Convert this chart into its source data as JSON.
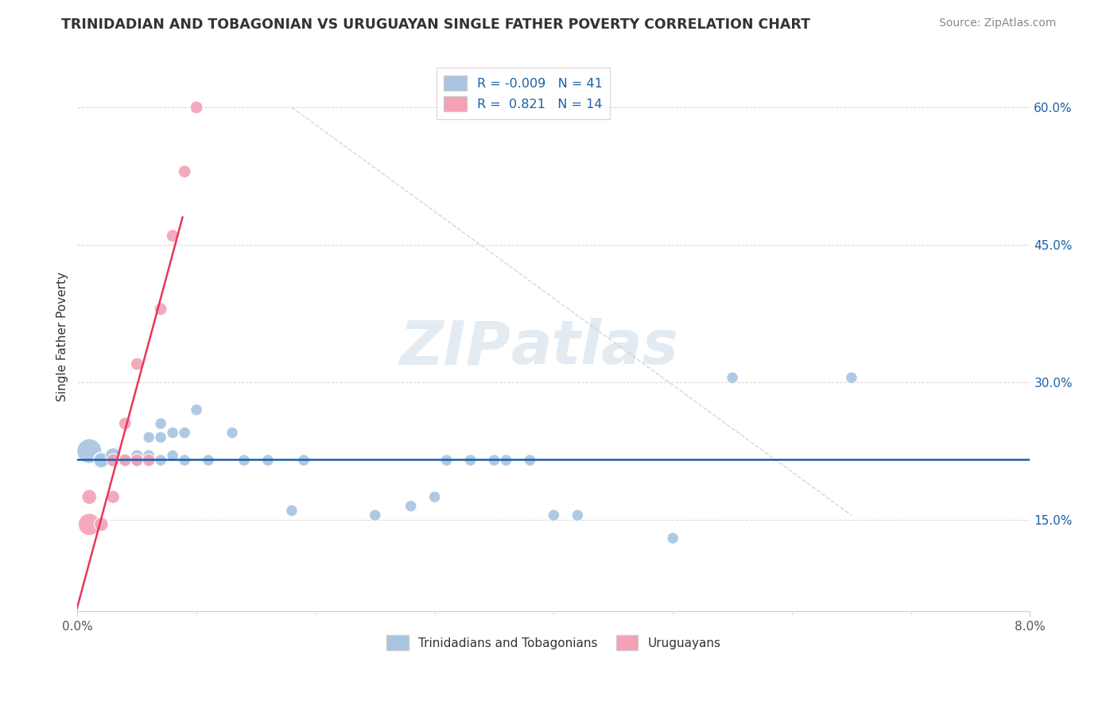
{
  "title": "TRINIDADIAN AND TOBAGONIAN VS URUGUAYAN SINGLE FATHER POVERTY CORRELATION CHART",
  "source": "Source: ZipAtlas.com",
  "ylabel": "Single Father Poverty",
  "r_blue": -0.009,
  "n_blue": 41,
  "r_pink": 0.821,
  "n_pink": 14,
  "yticks": [
    0.15,
    0.3,
    0.45,
    0.6
  ],
  "ytick_labels": [
    "15.0%",
    "30.0%",
    "45.0%",
    "60.0%"
  ],
  "xlim": [
    0.0,
    0.08
  ],
  "ylim": [
    0.05,
    0.65
  ],
  "watermark_zip": "ZIP",
  "watermark_atlas": "atlas",
  "legend_labels": [
    "Trinidadians and Tobagonians",
    "Uruguayans"
  ],
  "blue_color": "#a8c4e0",
  "pink_color": "#f4a0b5",
  "blue_line_color": "#1a5fa8",
  "pink_line_color": "#e8365a",
  "blue_scatter": [
    [
      0.001,
      0.225
    ],
    [
      0.002,
      0.215
    ],
    [
      0.002,
      0.215
    ],
    [
      0.003,
      0.22
    ],
    [
      0.003,
      0.215
    ],
    [
      0.004,
      0.215
    ],
    [
      0.004,
      0.215
    ],
    [
      0.004,
      0.215
    ],
    [
      0.005,
      0.215
    ],
    [
      0.005,
      0.22
    ],
    [
      0.005,
      0.215
    ],
    [
      0.006,
      0.22
    ],
    [
      0.006,
      0.215
    ],
    [
      0.006,
      0.24
    ],
    [
      0.007,
      0.215
    ],
    [
      0.007,
      0.24
    ],
    [
      0.007,
      0.255
    ],
    [
      0.008,
      0.22
    ],
    [
      0.008,
      0.245
    ],
    [
      0.009,
      0.215
    ],
    [
      0.009,
      0.245
    ],
    [
      0.01,
      0.27
    ],
    [
      0.011,
      0.215
    ],
    [
      0.013,
      0.245
    ],
    [
      0.014,
      0.215
    ],
    [
      0.016,
      0.215
    ],
    [
      0.018,
      0.16
    ],
    [
      0.019,
      0.215
    ],
    [
      0.025,
      0.155
    ],
    [
      0.028,
      0.165
    ],
    [
      0.03,
      0.175
    ],
    [
      0.031,
      0.215
    ],
    [
      0.033,
      0.215
    ],
    [
      0.035,
      0.215
    ],
    [
      0.036,
      0.215
    ],
    [
      0.038,
      0.215
    ],
    [
      0.04,
      0.155
    ],
    [
      0.042,
      0.155
    ],
    [
      0.05,
      0.13
    ],
    [
      0.055,
      0.305
    ],
    [
      0.065,
      0.305
    ]
  ],
  "pink_scatter": [
    [
      0.001,
      0.145
    ],
    [
      0.001,
      0.175
    ],
    [
      0.002,
      0.145
    ],
    [
      0.003,
      0.175
    ],
    [
      0.003,
      0.215
    ],
    [
      0.004,
      0.215
    ],
    [
      0.004,
      0.255
    ],
    [
      0.005,
      0.215
    ],
    [
      0.005,
      0.32
    ],
    [
      0.006,
      0.215
    ],
    [
      0.007,
      0.38
    ],
    [
      0.008,
      0.46
    ],
    [
      0.009,
      0.53
    ],
    [
      0.01,
      0.6
    ]
  ],
  "blue_sizes": [
    500,
    220,
    180,
    200,
    130,
    160,
    130,
    120,
    120,
    120,
    120,
    120,
    110,
    110,
    110,
    110,
    110,
    110,
    110,
    110,
    110,
    110,
    110,
    110,
    110,
    110,
    110,
    110,
    110,
    110,
    110,
    110,
    110,
    110,
    110,
    110,
    110,
    110,
    110,
    110,
    110
  ],
  "pink_sizes": [
    400,
    180,
    160,
    140,
    140,
    130,
    130,
    130,
    130,
    130,
    130,
    130,
    130,
    130
  ]
}
